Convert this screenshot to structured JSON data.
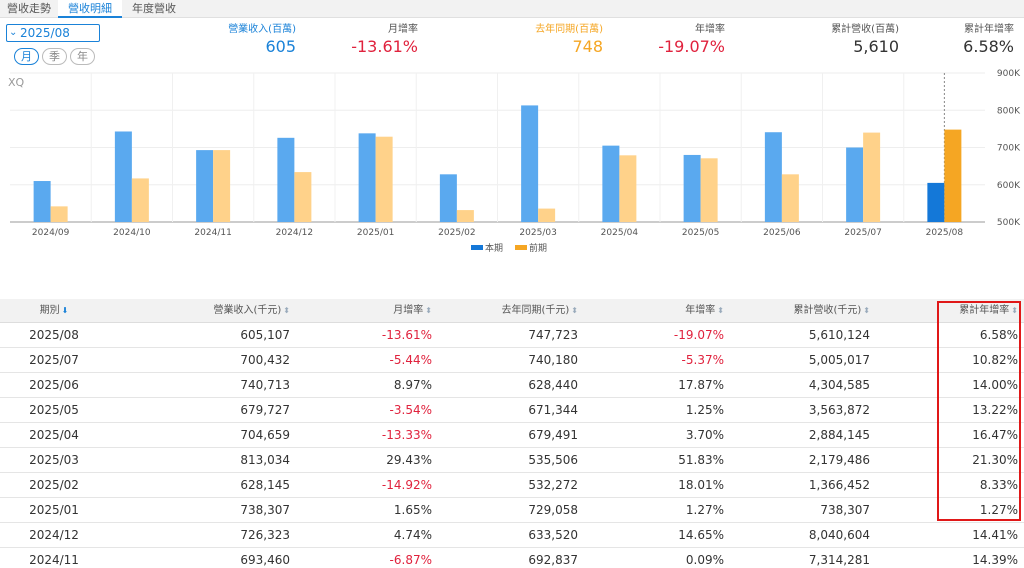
{
  "tabs": [
    "營收走勢",
    "營收明細",
    "年度營收"
  ],
  "period_select": "2025/08",
  "freq": [
    "月",
    "季",
    "年"
  ],
  "summary": {
    "revenue": {
      "label": "營業收入(百萬)",
      "value": "605",
      "color": "#1a82d8"
    },
    "mom": {
      "label": "月增率",
      "value": "-13.61%",
      "color": "#e0223d"
    },
    "last_year": {
      "label": "去年同期(百萬)",
      "value": "748",
      "color": "#f5a623"
    },
    "yoy": {
      "label": "年增率",
      "value": "-19.07%",
      "color": "#e0223d"
    },
    "cum": {
      "label": "累計營收(百萬)",
      "value": "5,610",
      "color": "#333333"
    },
    "cum_yoy": {
      "label": "累計年增率",
      "value": "6.58%",
      "color": "#333333"
    }
  },
  "chart_data": {
    "type": "bar",
    "watermark": "XQ",
    "categories": [
      "2024/09",
      "2024/10",
      "2024/11",
      "2024/12",
      "2025/01",
      "2025/02",
      "2025/03",
      "2025/04",
      "2025/05",
      "2025/06",
      "2025/07",
      "2025/08"
    ],
    "series": [
      {
        "name": "本期",
        "values": [
          610,
          743,
          693,
          726,
          738,
          628,
          813,
          705,
          680,
          741,
          700,
          605
        ],
        "color": "#5aa9ef",
        "highlight_color": "#1478d8"
      },
      {
        "name": "前期",
        "values": [
          542,
          617,
          693,
          634,
          729,
          532,
          536,
          679,
          671,
          628,
          740,
          748
        ],
        "color": "#ffd28a",
        "highlight_color": "#f5a623"
      }
    ],
    "y_ticks": [
      "500K",
      "600K",
      "700K",
      "800K",
      "900K"
    ],
    "ylim": [
      500,
      900
    ],
    "legend": [
      "本期",
      "前期"
    ]
  },
  "table": {
    "headers": [
      "期別",
      "營業收入(千元)",
      "月增率",
      "去年同期(千元)",
      "年增率",
      "累計營收(千元)",
      "累計年增率"
    ],
    "rows": [
      [
        "2025/08",
        "605,107",
        "-13.61%",
        "747,723",
        "-19.07%",
        "5,610,124",
        "6.58%"
      ],
      [
        "2025/07",
        "700,432",
        "-5.44%",
        "740,180",
        "-5.37%",
        "5,005,017",
        "10.82%"
      ],
      [
        "2025/06",
        "740,713",
        "8.97%",
        "628,440",
        "17.87%",
        "4,304,585",
        "14.00%"
      ],
      [
        "2025/05",
        "679,727",
        "-3.54%",
        "671,344",
        "1.25%",
        "3,563,872",
        "13.22%"
      ],
      [
        "2025/04",
        "704,659",
        "-13.33%",
        "679,491",
        "3.70%",
        "2,884,145",
        "16.47%"
      ],
      [
        "2025/03",
        "813,034",
        "29.43%",
        "535,506",
        "51.83%",
        "2,179,486",
        "21.30%"
      ],
      [
        "2025/02",
        "628,145",
        "-14.92%",
        "532,272",
        "18.01%",
        "1,366,452",
        "8.33%"
      ],
      [
        "2025/01",
        "738,307",
        "1.65%",
        "729,058",
        "1.27%",
        "738,307",
        "1.27%"
      ],
      [
        "2024/12",
        "726,323",
        "4.74%",
        "633,520",
        "14.65%",
        "8,040,604",
        "14.41%"
      ],
      [
        "2024/11",
        "693,460",
        "-6.87%",
        "692,837",
        "0.09%",
        "7,314,281",
        "14.39%"
      ]
    ]
  }
}
